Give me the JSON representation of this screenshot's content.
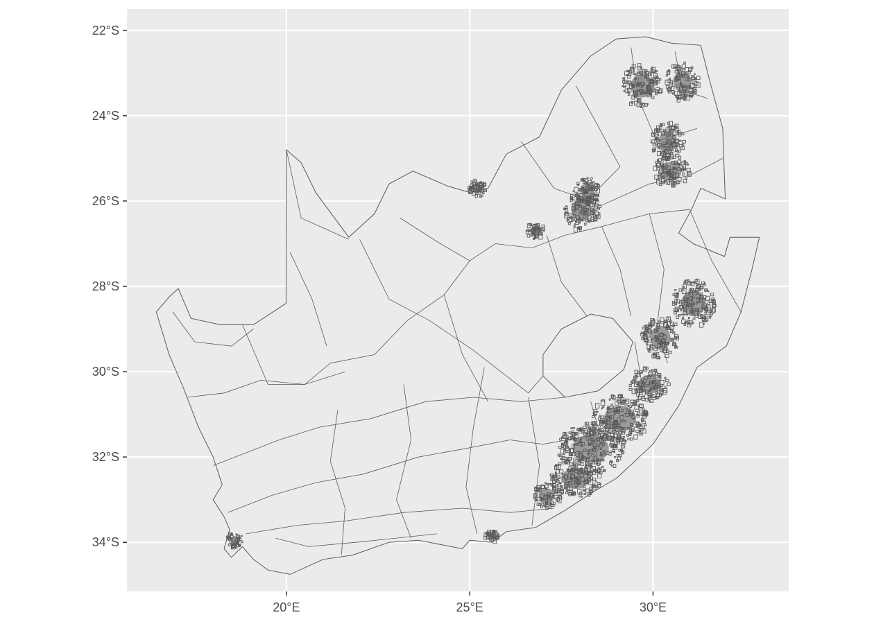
{
  "map": {
    "x_axis": {
      "unit": "°E",
      "ticks": [
        {
          "value": 20,
          "label": "20°E"
        },
        {
          "value": 25,
          "label": "25°E"
        },
        {
          "value": 30,
          "label": "30°E"
        }
      ],
      "range": [
        15.65,
        33.7
      ]
    },
    "y_axis": {
      "unit": "°S",
      "ticks": [
        {
          "value": -22,
          "label": "22°S"
        },
        {
          "value": -24,
          "label": "24°S"
        },
        {
          "value": -26,
          "label": "26°S"
        },
        {
          "value": -28,
          "label": "28°S"
        },
        {
          "value": -30,
          "label": "30°S"
        },
        {
          "value": -32,
          "label": "32°S"
        },
        {
          "value": -34,
          "label": "34°S"
        }
      ],
      "range": [
        -35.15,
        -21.5
      ]
    },
    "panel_background": "#ebebeb",
    "grid_color": "#ffffff",
    "fill_color": "#ebebeb",
    "border_color": "#595959",
    "grid": true,
    "legend": "none",
    "country_outline": [
      [
        16.45,
        -28.6
      ],
      [
        16.8,
        -28.25
      ],
      [
        17.05,
        -28.05
      ],
      [
        17.4,
        -28.75
      ],
      [
        18.2,
        -28.9
      ],
      [
        19.1,
        -28.9
      ],
      [
        19.99,
        -28.4
      ],
      [
        20.0,
        -24.8
      ],
      [
        20.4,
        -25.1
      ],
      [
        20.8,
        -25.8
      ],
      [
        21.7,
        -26.85
      ],
      [
        22.4,
        -26.3
      ],
      [
        22.8,
        -25.6
      ],
      [
        23.45,
        -25.3
      ],
      [
        24.4,
        -25.65
      ],
      [
        25.0,
        -25.8
      ],
      [
        25.5,
        -25.7
      ],
      [
        26.0,
        -24.9
      ],
      [
        26.9,
        -24.5
      ],
      [
        27.5,
        -23.4
      ],
      [
        28.3,
        -22.6
      ],
      [
        29.0,
        -22.2
      ],
      [
        29.8,
        -22.15
      ],
      [
        30.5,
        -22.3
      ],
      [
        31.3,
        -22.35
      ],
      [
        31.55,
        -23.2
      ],
      [
        31.9,
        -24.3
      ],
      [
        31.95,
        -25.5
      ],
      [
        31.97,
        -25.95
      ],
      [
        31.3,
        -25.7
      ],
      [
        31.05,
        -26.2
      ],
      [
        30.7,
        -26.75
      ],
      [
        31.1,
        -27.0
      ],
      [
        31.95,
        -27.3
      ],
      [
        32.1,
        -26.85
      ],
      [
        32.9,
        -26.85
      ],
      [
        32.7,
        -27.6
      ],
      [
        32.4,
        -28.6
      ],
      [
        32.0,
        -29.4
      ],
      [
        31.2,
        -29.9
      ],
      [
        30.7,
        -30.8
      ],
      [
        30.0,
        -31.7
      ],
      [
        29.0,
        -32.5
      ],
      [
        28.4,
        -32.8
      ],
      [
        27.6,
        -33.25
      ],
      [
        26.8,
        -33.65
      ],
      [
        26.0,
        -33.75
      ],
      [
        25.6,
        -34.0
      ],
      [
        25.0,
        -33.95
      ],
      [
        24.8,
        -34.15
      ],
      [
        23.6,
        -33.95
      ],
      [
        22.8,
        -34.0
      ],
      [
        21.8,
        -34.3
      ],
      [
        21.0,
        -34.4
      ],
      [
        20.1,
        -34.75
      ],
      [
        19.5,
        -34.65
      ],
      [
        19.1,
        -34.4
      ],
      [
        18.8,
        -34.1
      ],
      [
        18.5,
        -34.35
      ],
      [
        18.3,
        -34.15
      ],
      [
        18.45,
        -33.7
      ],
      [
        18.3,
        -33.4
      ],
      [
        18.0,
        -33.0
      ],
      [
        18.25,
        -32.65
      ],
      [
        18.0,
        -32.0
      ],
      [
        17.6,
        -31.3
      ],
      [
        17.2,
        -30.4
      ],
      [
        16.8,
        -29.6
      ],
      [
        16.45,
        -28.6
      ]
    ],
    "lesotho_outline": [
      [
        27.0,
        -29.6
      ],
      [
        27.5,
        -29.0
      ],
      [
        28.3,
        -28.65
      ],
      [
        28.9,
        -28.75
      ],
      [
        29.45,
        -29.3
      ],
      [
        29.2,
        -29.95
      ],
      [
        28.5,
        -30.45
      ],
      [
        27.6,
        -30.6
      ],
      [
        27.0,
        -30.1
      ],
      [
        27.0,
        -29.6
      ]
    ],
    "region_boundaries": [
      [
        [
          18.8,
          -28.9
        ],
        [
          19.5,
          -30.3
        ],
        [
          20.5,
          -30.3
        ],
        [
          21.2,
          -29.8
        ],
        [
          22.4,
          -29.6
        ],
        [
          23.3,
          -28.8
        ],
        [
          24.3,
          -28.2
        ],
        [
          25.0,
          -27.4
        ],
        [
          25.7,
          -27.0
        ],
        [
          26.7,
          -27.1
        ],
        [
          27.6,
          -26.8
        ],
        [
          28.6,
          -26.6
        ],
        [
          29.9,
          -26.3
        ],
        [
          31.0,
          -26.2
        ]
      ],
      [
        [
          20.0,
          -24.8
        ],
        [
          20.4,
          -26.4
        ],
        [
          21.7,
          -26.9
        ]
      ],
      [
        [
          22.0,
          -26.9
        ],
        [
          22.8,
          -28.3
        ],
        [
          23.9,
          -28.8
        ],
        [
          25.1,
          -29.5
        ],
        [
          26.6,
          -30.5
        ],
        [
          27.0,
          -30.1
        ]
      ],
      [
        [
          17.3,
          -30.6
        ],
        [
          18.3,
          -30.5
        ],
        [
          19.3,
          -30.2
        ],
        [
          20.5,
          -30.3
        ],
        [
          21.6,
          -30.0
        ]
      ],
      [
        [
          18.0,
          -32.2
        ],
        [
          18.9,
          -31.9
        ],
        [
          19.8,
          -31.6
        ],
        [
          20.9,
          -31.3
        ],
        [
          22.3,
          -31.1
        ],
        [
          23.8,
          -30.7
        ],
        [
          25.1,
          -30.6
        ],
        [
          26.4,
          -30.7
        ],
        [
          27.6,
          -30.6
        ]
      ],
      [
        [
          18.4,
          -33.3
        ],
        [
          19.6,
          -32.9
        ],
        [
          20.8,
          -32.6
        ],
        [
          22.1,
          -32.4
        ],
        [
          23.6,
          -32.0
        ],
        [
          24.9,
          -31.8
        ],
        [
          26.1,
          -31.6
        ],
        [
          27.0,
          -31.7
        ],
        [
          28.3,
          -31.5
        ],
        [
          29.2,
          -31.0
        ],
        [
          30.2,
          -30.2
        ]
      ],
      [
        [
          18.9,
          -33.8
        ],
        [
          20.3,
          -33.6
        ],
        [
          21.6,
          -33.5
        ],
        [
          23.2,
          -33.3
        ],
        [
          24.8,
          -33.2
        ],
        [
          26.1,
          -33.3
        ],
        [
          27.3,
          -33.2
        ]
      ],
      [
        [
          19.7,
          -33.9
        ],
        [
          20.6,
          -34.1
        ],
        [
          21.9,
          -34.0
        ],
        [
          23.0,
          -33.9
        ],
        [
          24.1,
          -33.8
        ]
      ],
      [
        [
          21.4,
          -30.9
        ],
        [
          21.2,
          -32.1
        ],
        [
          21.6,
          -33.2
        ],
        [
          21.5,
          -34.3
        ]
      ],
      [
        [
          23.2,
          -30.3
        ],
        [
          23.4,
          -31.6
        ],
        [
          23.0,
          -33.0
        ],
        [
          23.4,
          -33.9
        ]
      ],
      [
        [
          25.4,
          -29.9
        ],
        [
          25.1,
          -31.3
        ],
        [
          24.9,
          -32.7
        ],
        [
          25.2,
          -33.8
        ]
      ],
      [
        [
          26.6,
          -30.6
        ],
        [
          26.9,
          -32.2
        ],
        [
          26.7,
          -33.6
        ]
      ],
      [
        [
          27.1,
          -26.8
        ],
        [
          27.5,
          -27.9
        ],
        [
          28.2,
          -28.7
        ]
      ],
      [
        [
          28.6,
          -26.6
        ],
        [
          29.1,
          -27.6
        ],
        [
          29.4,
          -28.7
        ]
      ],
      [
        [
          29.9,
          -26.3
        ],
        [
          30.3,
          -27.6
        ],
        [
          30.1,
          -29.0
        ],
        [
          30.4,
          -29.8
        ]
      ],
      [
        [
          31.0,
          -26.2
        ],
        [
          31.6,
          -27.4
        ],
        [
          32.4,
          -28.6
        ]
      ],
      [
        [
          26.4,
          -24.6
        ],
        [
          27.3,
          -25.7
        ],
        [
          28.6,
          -26.1
        ],
        [
          29.9,
          -25.6
        ],
        [
          31.0,
          -25.4
        ],
        [
          31.9,
          -25.0
        ]
      ],
      [
        [
          27.9,
          -23.3
        ],
        [
          28.6,
          -24.4
        ],
        [
          29.1,
          -25.2
        ],
        [
          28.3,
          -25.9
        ]
      ],
      [
        [
          29.4,
          -22.4
        ],
        [
          29.6,
          -23.6
        ],
        [
          30.1,
          -24.6
        ],
        [
          31.2,
          -24.3
        ]
      ],
      [
        [
          30.6,
          -22.5
        ],
        [
          30.8,
          -23.4
        ],
        [
          31.5,
          -23.6
        ]
      ],
      [
        [
          16.9,
          -28.6
        ],
        [
          17.5,
          -29.3
        ],
        [
          18.5,
          -29.4
        ],
        [
          19.1,
          -29.0
        ]
      ],
      [
        [
          20.1,
          -27.2
        ],
        [
          20.7,
          -28.3
        ],
        [
          21.1,
          -29.4
        ]
      ],
      [
        [
          23.1,
          -26.4
        ],
        [
          24.2,
          -27.0
        ],
        [
          25.0,
          -27.4
        ]
      ],
      [
        [
          24.3,
          -28.2
        ],
        [
          24.8,
          -29.6
        ],
        [
          25.5,
          -30.7
        ]
      ],
      [
        [
          28.1,
          -32.7
        ],
        [
          28.6,
          -31.6
        ],
        [
          28.3,
          -30.7
        ]
      ],
      [
        [
          29.4,
          -31.1
        ],
        [
          29.7,
          -30.3
        ],
        [
          29.5,
          -29.3
        ]
      ]
    ],
    "dense_urban_clusters": [
      {
        "lon": 28.05,
        "lat": -26.2,
        "rx": 0.5,
        "ry": 0.5
      },
      {
        "lon": 28.2,
        "lat": -25.75,
        "rx": 0.35,
        "ry": 0.3
      },
      {
        "lon": 30.5,
        "lat": -25.3,
        "rx": 0.5,
        "ry": 0.4
      },
      {
        "lon": 29.7,
        "lat": -23.3,
        "rx": 0.55,
        "ry": 0.5
      },
      {
        "lon": 30.8,
        "lat": -23.2,
        "rx": 0.45,
        "ry": 0.45
      },
      {
        "lon": 30.4,
        "lat": -24.6,
        "rx": 0.45,
        "ry": 0.45
      },
      {
        "lon": 31.1,
        "lat": -28.4,
        "rx": 0.6,
        "ry": 0.55
      },
      {
        "lon": 30.2,
        "lat": -29.2,
        "rx": 0.5,
        "ry": 0.5
      },
      {
        "lon": 29.9,
        "lat": -30.3,
        "rx": 0.55,
        "ry": 0.4
      },
      {
        "lon": 29.1,
        "lat": -31.1,
        "rx": 0.8,
        "ry": 0.55
      },
      {
        "lon": 28.3,
        "lat": -31.8,
        "rx": 0.9,
        "ry": 0.6
      },
      {
        "lon": 27.9,
        "lat": -32.5,
        "rx": 0.7,
        "ry": 0.45
      },
      {
        "lon": 27.1,
        "lat": -32.9,
        "rx": 0.4,
        "ry": 0.3
      },
      {
        "lon": 18.6,
        "lat": -33.95,
        "rx": 0.22,
        "ry": 0.18
      },
      {
        "lon": 25.6,
        "lat": -33.85,
        "rx": 0.2,
        "ry": 0.12
      },
      {
        "lon": 26.8,
        "lat": -26.7,
        "rx": 0.25,
        "ry": 0.2
      },
      {
        "lon": 25.2,
        "lat": -25.7,
        "rx": 0.25,
        "ry": 0.2
      }
    ]
  }
}
